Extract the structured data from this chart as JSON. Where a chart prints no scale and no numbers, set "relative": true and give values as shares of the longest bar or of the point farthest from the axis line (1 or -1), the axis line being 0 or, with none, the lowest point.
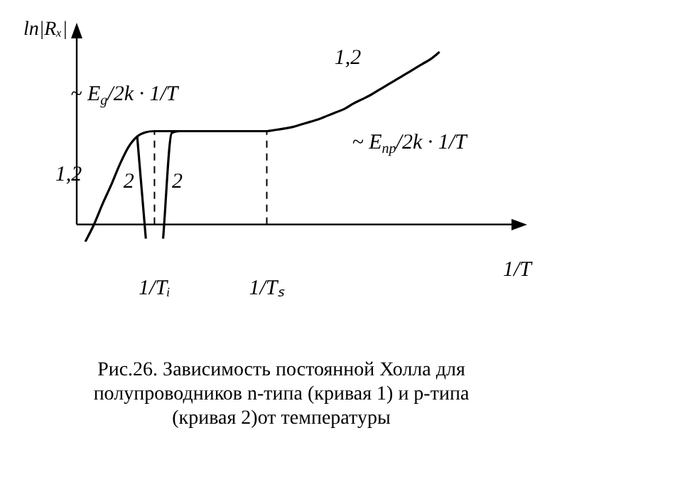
{
  "chart_data": {
    "type": "line",
    "relative": true,
    "xlabel": "1/T",
    "ylabel": "ln|Rₓ|",
    "categories": [
      null,
      null,
      null,
      null,
      null,
      null,
      null,
      null,
      null,
      "1/Tᵢ",
      null,
      null,
      null,
      null,
      null,
      null,
      null,
      null,
      null,
      null,
      null,
      null,
      "1/Tₛ",
      null,
      null,
      null,
      null,
      null,
      null,
      null,
      null,
      null,
      null,
      null,
      null,
      null,
      null,
      null,
      null,
      null,
      null,
      null,
      null,
      null,
      null,
      null,
      null,
      null,
      null,
      null,
      null
    ],
    "grid": false,
    "legend": false,
    "marker": "none",
    "line_style": "solid",
    "series": [
      {
        "name": "1,2",
        "color": "#000000",
        "values": [
          null,
          -0.1,
          0.0,
          0.12,
          0.23,
          0.35,
          0.45,
          0.51,
          0.535,
          0.541,
          0.541,
          0.541,
          0.541,
          0.541,
          0.541,
          0.541,
          0.541,
          0.541,
          0.541,
          0.541,
          0.541,
          0.541,
          0.541,
          0.548,
          0.556,
          0.565,
          0.58,
          0.595,
          0.61,
          0.63,
          0.65,
          0.67,
          0.7,
          0.725,
          0.75,
          0.78,
          0.81,
          0.84,
          0.87,
          0.9,
          0.93,
          0.96,
          1,
          null,
          null,
          null,
          null,
          null,
          null,
          null,
          null
        ]
      },
      {
        "name": "2",
        "color": "#000000",
        "values": [
          null,
          null,
          null,
          null,
          null,
          null,
          null,
          0.51,
          -0.082,
          null,
          null,
          null,
          null,
          null,
          null,
          null,
          null,
          null,
          null,
          null,
          null,
          null,
          null,
          null,
          null,
          null,
          null,
          null,
          null,
          null,
          null,
          null,
          null,
          null,
          null,
          null,
          null,
          null,
          null,
          null,
          null,
          null,
          null,
          null,
          null,
          null,
          null,
          null,
          null,
          null,
          null
        ]
      },
      {
        "name": "2",
        "color": "#000000",
        "values": [
          null,
          null,
          null,
          null,
          null,
          null,
          null,
          null,
          null,
          null,
          -0.082,
          0.53,
          0.541,
          null,
          null,
          null,
          null,
          null,
          null,
          null,
          null,
          null,
          null,
          null,
          null,
          null,
          null,
          null,
          null,
          null,
          null,
          null,
          null,
          null,
          null,
          null,
          null,
          null,
          null,
          null,
          null,
          null,
          null,
          null,
          null,
          null,
          null,
          null,
          null,
          null,
          null
        ]
      }
    ],
    "ref_lines": [
      {
        "axis": "x",
        "value": "1/Tᵢ",
        "line_style": "dashed",
        "color": "#000000"
      },
      {
        "axis": "x",
        "value": "1/Tₛ",
        "line_style": "dashed",
        "color": "#000000"
      }
    ],
    "annotations": [
      "~ E$_{g}$/2k · 1/T",
      "~ E$_{пр}$/2k · 1/T",
      "Рис.26. Зависимость постоянной Холла для полупроводников n-типа (кривая 1) и p-типа (кривая 2)от температуры"
    ]
  }
}
